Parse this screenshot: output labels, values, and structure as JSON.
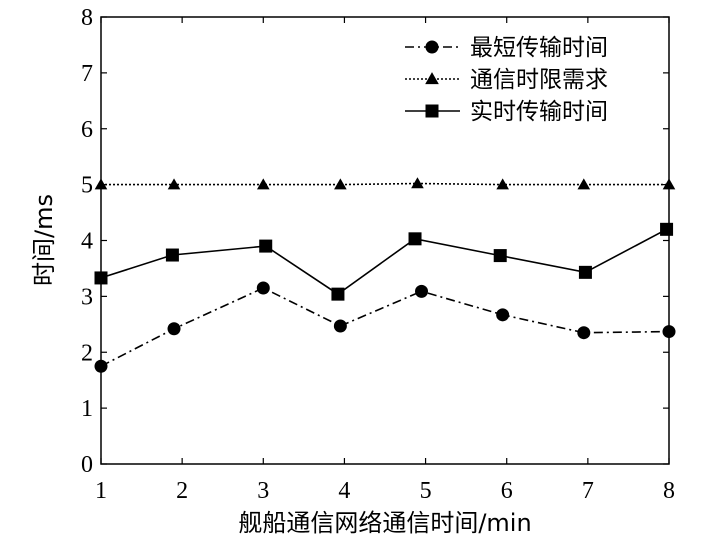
{
  "chart_data": {
    "type": "line",
    "xlabel": "舰船通信网络通信时间/min",
    "ylabel": "时间/ms",
    "xlim": [
      1,
      8
    ],
    "ylim": [
      0,
      8
    ],
    "x_ticks": [
      "1",
      "2",
      "3",
      "4",
      "5",
      "6",
      "7",
      "8"
    ],
    "y_ticks": [
      "0",
      "1",
      "2",
      "3",
      "4",
      "5",
      "6",
      "7",
      "8"
    ],
    "grid": false,
    "legend_position": "top-right",
    "series": [
      {
        "name": "最短传输时间",
        "marker": "circle",
        "line_style": "dash-dot",
        "points": [
          [
            1.0,
            1.75
          ],
          [
            1.9,
            2.42
          ],
          [
            3.0,
            3.15
          ],
          [
            3.95,
            2.47
          ],
          [
            4.95,
            3.09
          ],
          [
            5.95,
            2.67
          ],
          [
            6.95,
            2.35
          ],
          [
            8.0,
            2.37
          ]
        ]
      },
      {
        "name": "通信时限需求",
        "marker": "triangle",
        "line_style": "dotted",
        "points": [
          [
            1.0,
            5.0
          ],
          [
            1.9,
            5.0
          ],
          [
            3.0,
            5.0
          ],
          [
            3.95,
            5.0
          ],
          [
            4.9,
            5.02
          ],
          [
            5.95,
            5.0
          ],
          [
            6.95,
            5.0
          ],
          [
            8.0,
            5.0
          ]
        ]
      },
      {
        "name": "实时传输时间",
        "marker": "square",
        "line_style": "solid",
        "points": [
          [
            1.0,
            3.33
          ],
          [
            1.88,
            3.74
          ],
          [
            3.03,
            3.9
          ],
          [
            3.92,
            3.04
          ],
          [
            4.87,
            4.03
          ],
          [
            5.92,
            3.73
          ],
          [
            6.97,
            3.43
          ],
          [
            7.97,
            4.2
          ]
        ]
      }
    ]
  }
}
